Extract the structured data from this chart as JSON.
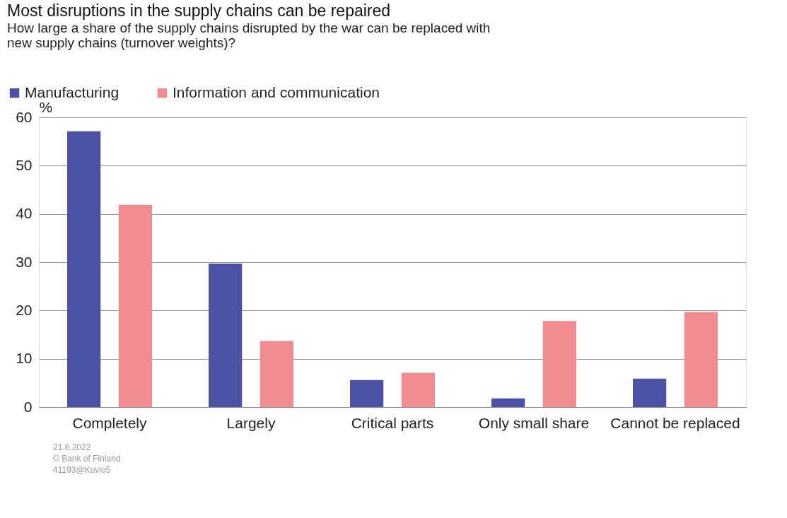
{
  "chart_data": {
    "type": "bar",
    "title": "Most disruptions in the supply chains can be repaired",
    "subtitle": "How large a share of the supply chains disrupted by the war can be replaced with new supply chains (turnover weights)?",
    "ylabel": "%",
    "categories": [
      "Completely",
      "Largely",
      "Critical parts",
      "Only small share",
      "Cannot be replaced"
    ],
    "series": [
      {
        "name": "Manufacturing",
        "color": "#4c52a3",
        "values": [
          57.1,
          29.7,
          5.6,
          1.8,
          5.9
        ]
      },
      {
        "name": "Information and communication",
        "color": "#f08c8f",
        "values": [
          41.9,
          13.7,
          7.1,
          17.8,
          19.7
        ]
      }
    ],
    "ylim": [
      0,
      60
    ],
    "yticks": [
      0,
      10,
      20,
      30,
      40,
      50,
      60
    ],
    "grid": "y",
    "legend": "top left",
    "annotations": [
      "21.6.2022",
      "© Bank of Finland",
      "41193@Kuvio5"
    ]
  }
}
